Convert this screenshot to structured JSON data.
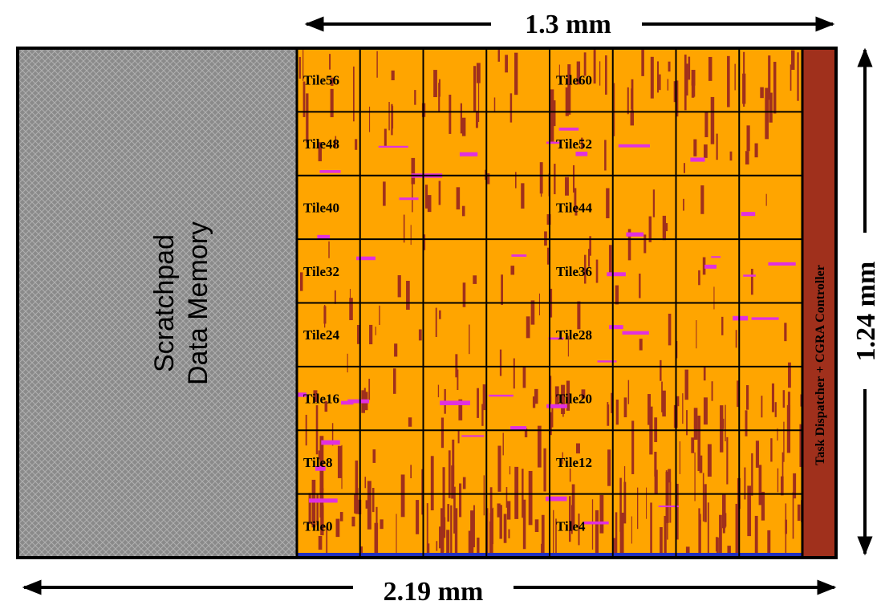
{
  "dimensions": {
    "top": "1.3 mm",
    "bottom": "2.19 mm",
    "right": "1.24 mm"
  },
  "memory": {
    "lines": [
      "Scratchpad",
      "Data Memory"
    ]
  },
  "tiles": [
    "Tile56",
    "Tile60",
    "Tile48",
    "Tile52",
    "Tile40",
    "Tile44",
    "Tile32",
    "Tile36",
    "Tile24",
    "Tile28",
    "Tile16",
    "Tile20",
    "Tile8",
    "Tile12",
    "Tile0",
    "Tile4"
  ],
  "controller": "Task Dispatcher + CGRA Controller"
}
